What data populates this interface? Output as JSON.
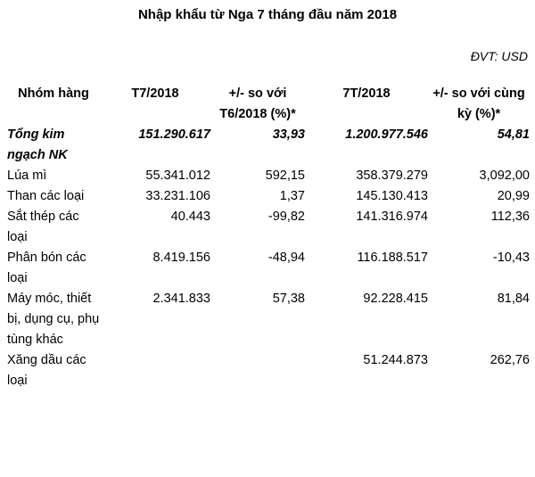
{
  "title": "Nhập khẩu từ Nga 7 tháng đầu năm 2018",
  "unit": "ĐVT: USD",
  "headers": {
    "group": "Nhóm hàng",
    "t7": "T7/2018",
    "change_t6": "+/- so với T6/2018 (%)*",
    "seven_months": "7T/2018",
    "change_yoy": "+/- so với cùng kỳ (%)*"
  },
  "total": {
    "name": "Tổng kim ngạch NK",
    "t7": "151.290.617",
    "change_t6": "33,93",
    "seven_months": "1.200.977.546",
    "change_yoy": "54,81"
  },
  "rows": [
    {
      "name": "Lúa mì",
      "t7": "55.341.012",
      "change_t6": "592,15",
      "seven_months": "358.379.279",
      "change_yoy": "3,092,00"
    },
    {
      "name": "Than các loại",
      "t7": "33.231.106",
      "change_t6": "1,37",
      "seven_months": "145.130.413",
      "change_yoy": "20,99"
    },
    {
      "name": "Sắt thép các loại",
      "t7": "40.443",
      "change_t6": "-99,82",
      "seven_months": "141.316.974",
      "change_yoy": "112,36"
    },
    {
      "name": "Phân bón các loại",
      "t7": "8.419.156",
      "change_t6": "-48,94",
      "seven_months": "116.188.517",
      "change_yoy": "-10,43"
    },
    {
      "name": "Máy móc, thiết bị, dụng cụ, phụ tùng khác",
      "t7": "2.341.833",
      "change_t6": "57,38",
      "seven_months": "92.228.415",
      "change_yoy": "81,84"
    },
    {
      "name": "Xăng dầu các loại",
      "t7": "",
      "change_t6": "",
      "seven_months": "51.244.873",
      "change_yoy": "262,76"
    }
  ]
}
